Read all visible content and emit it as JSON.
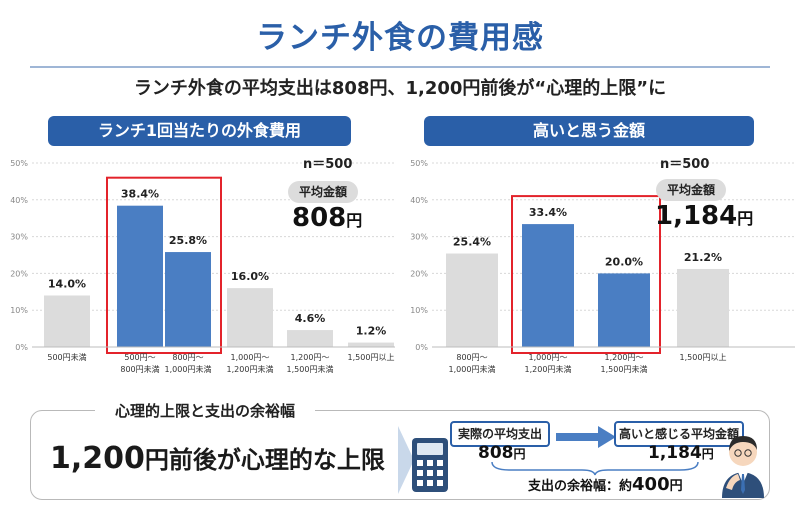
{
  "page": {
    "title": "ランチ外食の費用感",
    "subtitle": "ランチ外食の平均支出は808円、1,200円前後が“心理的上限”に"
  },
  "chart_data": [
    {
      "type": "bar",
      "title": "ランチ1回当たりの外食費用",
      "n_label": "n＝500",
      "categories": [
        "500円未満",
        "500円～\n800円未満",
        "800円～\n1,000円未満",
        "1,000円～\n1,200円未満",
        "1,200円～\n1,500円未満",
        "1,500円以上"
      ],
      "values": [
        14.0,
        38.4,
        25.8,
        16.0,
        4.6,
        1.2
      ],
      "value_labels": [
        "14.0%",
        "38.4%",
        "25.8%",
        "16.0%",
        "4.6%",
        "1.2%"
      ],
      "highlight": [
        false,
        true,
        true,
        false,
        false,
        false
      ],
      "yticks": [
        "0%",
        "10%",
        "20%",
        "30%",
        "40%",
        "50%"
      ],
      "ylim": [
        0,
        50
      ],
      "average_label": "平均金額",
      "average_value": "808",
      "average_unit": "円",
      "colors": {
        "highlight": "#4a7ec3",
        "normal": "#dcdcdc",
        "frame": "#e3232b"
      }
    },
    {
      "type": "bar",
      "title": "高いと思う金額",
      "n_label": "n＝500",
      "categories": [
        "800円～\n1,000円未満",
        "1,000円～\n1,200円未満",
        "1,200円～\n1,500円未満",
        "1,500円以上"
      ],
      "values": [
        25.4,
        33.4,
        20.0,
        21.2
      ],
      "value_labels": [
        "25.4%",
        "33.4%",
        "20.0%",
        "21.2%"
      ],
      "highlight": [
        false,
        true,
        true,
        false
      ],
      "yticks": [
        "0%",
        "10%",
        "20%",
        "30%",
        "40%",
        "50%"
      ],
      "ylim": [
        0,
        50
      ],
      "average_label": "平均金額",
      "average_value": "1,184",
      "average_unit": "円",
      "colors": {
        "highlight": "#4a7ec3",
        "normal": "#dcdcdc",
        "frame": "#e3232b"
      }
    }
  ],
  "summary": {
    "label": "心理的上限と支出の余裕幅",
    "headline_big": "1,200",
    "headline_rest": "円前後が心理的な上限",
    "actual_label": "実際の平均支出",
    "actual_value": "808",
    "actual_unit": "円",
    "high_label": "高いと感じる平均金額",
    "high_value": "1,184",
    "high_unit": "円",
    "margin_prefix": "支出の余裕幅：約",
    "margin_value": "400",
    "margin_unit": "円",
    "icons": [
      "calculator-icon",
      "thinking-person-icon",
      "arrow-right-icon"
    ]
  }
}
